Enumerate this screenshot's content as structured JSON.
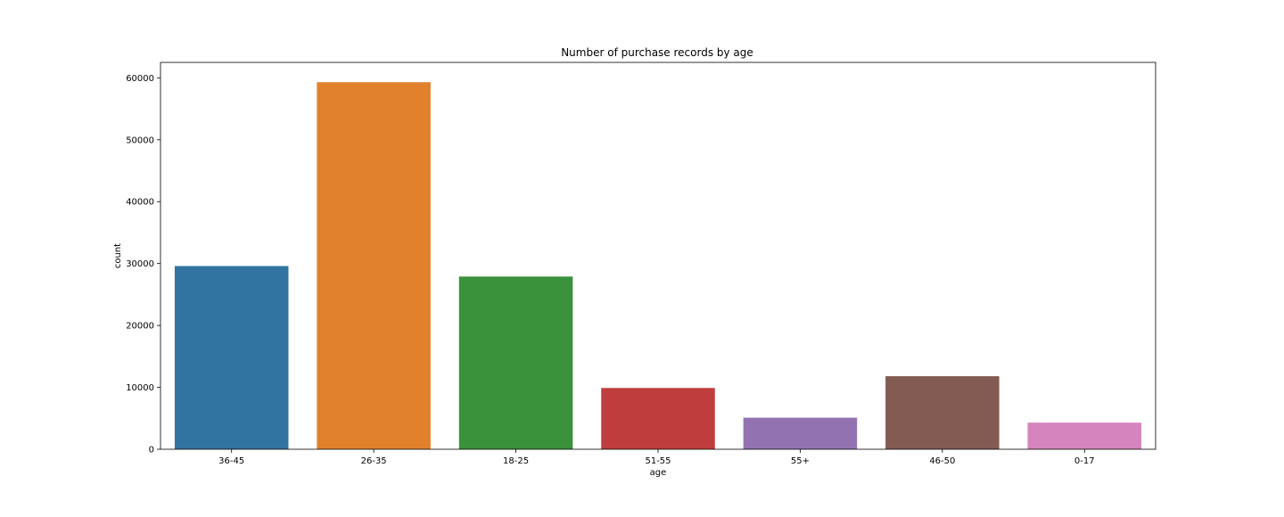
{
  "chart_data": {
    "type": "bar",
    "title": "Number of purchase records by age",
    "xlabel": "age",
    "ylabel": "count",
    "categories": [
      "36-45",
      "26-35",
      "18-25",
      "51-55",
      "55+",
      "46-50",
      "0-17"
    ],
    "values": [
      29600,
      59300,
      27900,
      9900,
      5100,
      11800,
      4300
    ],
    "colors": [
      "#3274a1",
      "#e1812c",
      "#3a923a",
      "#c03d3e",
      "#9372b2",
      "#845b53",
      "#d684bd"
    ],
    "ylim": [
      0,
      62500
    ],
    "yticks": [
      0,
      10000,
      20000,
      30000,
      40000,
      50000,
      60000
    ],
    "grid": false,
    "legend": "none"
  }
}
